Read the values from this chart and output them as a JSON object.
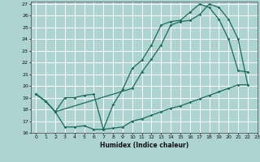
{
  "xlabel": "Humidex (Indice chaleur)",
  "xlim": [
    -0.5,
    23
  ],
  "ylim": [
    16,
    27.2
  ],
  "background_color": "#aed4d2",
  "grid_color": "#ffffff",
  "line_color": "#1a6b5a",
  "line1_x": [
    0,
    1,
    2,
    3,
    4,
    5,
    6,
    7,
    8,
    9,
    10,
    11,
    12,
    13,
    14,
    15,
    16,
    17,
    18,
    19,
    20,
    21,
    22
  ],
  "line1_y": [
    19.3,
    18.7,
    17.8,
    19.0,
    19.0,
    19.2,
    19.3,
    16.3,
    18.4,
    19.7,
    21.5,
    22.2,
    23.5,
    25.2,
    25.5,
    25.6,
    26.3,
    27.0,
    26.7,
    25.7,
    24.0,
    21.3,
    21.2
  ],
  "line2_x": [
    0,
    1,
    2,
    10,
    11,
    12,
    13,
    14,
    15,
    16,
    17,
    18,
    19,
    20,
    21,
    22
  ],
  "line2_y": [
    19.3,
    18.7,
    17.8,
    19.8,
    21.2,
    22.3,
    23.5,
    25.2,
    25.5,
    25.6,
    26.1,
    27.0,
    26.7,
    25.7,
    24.0,
    20.1
  ],
  "line3_x": [
    0,
    1,
    2,
    3,
    4,
    5,
    6,
    7,
    8,
    9,
    10,
    11,
    12,
    13,
    14,
    15,
    16,
    17,
    18,
    19,
    20,
    21,
    22
  ],
  "line3_y": [
    19.3,
    18.7,
    17.8,
    16.5,
    16.5,
    16.6,
    16.3,
    16.3,
    16.4,
    16.5,
    17.0,
    17.2,
    17.5,
    17.8,
    18.1,
    18.3,
    18.6,
    18.9,
    19.2,
    19.5,
    19.8,
    20.1,
    20.1
  ],
  "yticks": [
    16,
    17,
    18,
    19,
    20,
    21,
    22,
    23,
    24,
    25,
    26,
    27
  ],
  "xticks": [
    0,
    1,
    2,
    3,
    4,
    5,
    6,
    7,
    8,
    9,
    10,
    11,
    12,
    13,
    14,
    15,
    16,
    17,
    18,
    19,
    20,
    21,
    22,
    23
  ]
}
